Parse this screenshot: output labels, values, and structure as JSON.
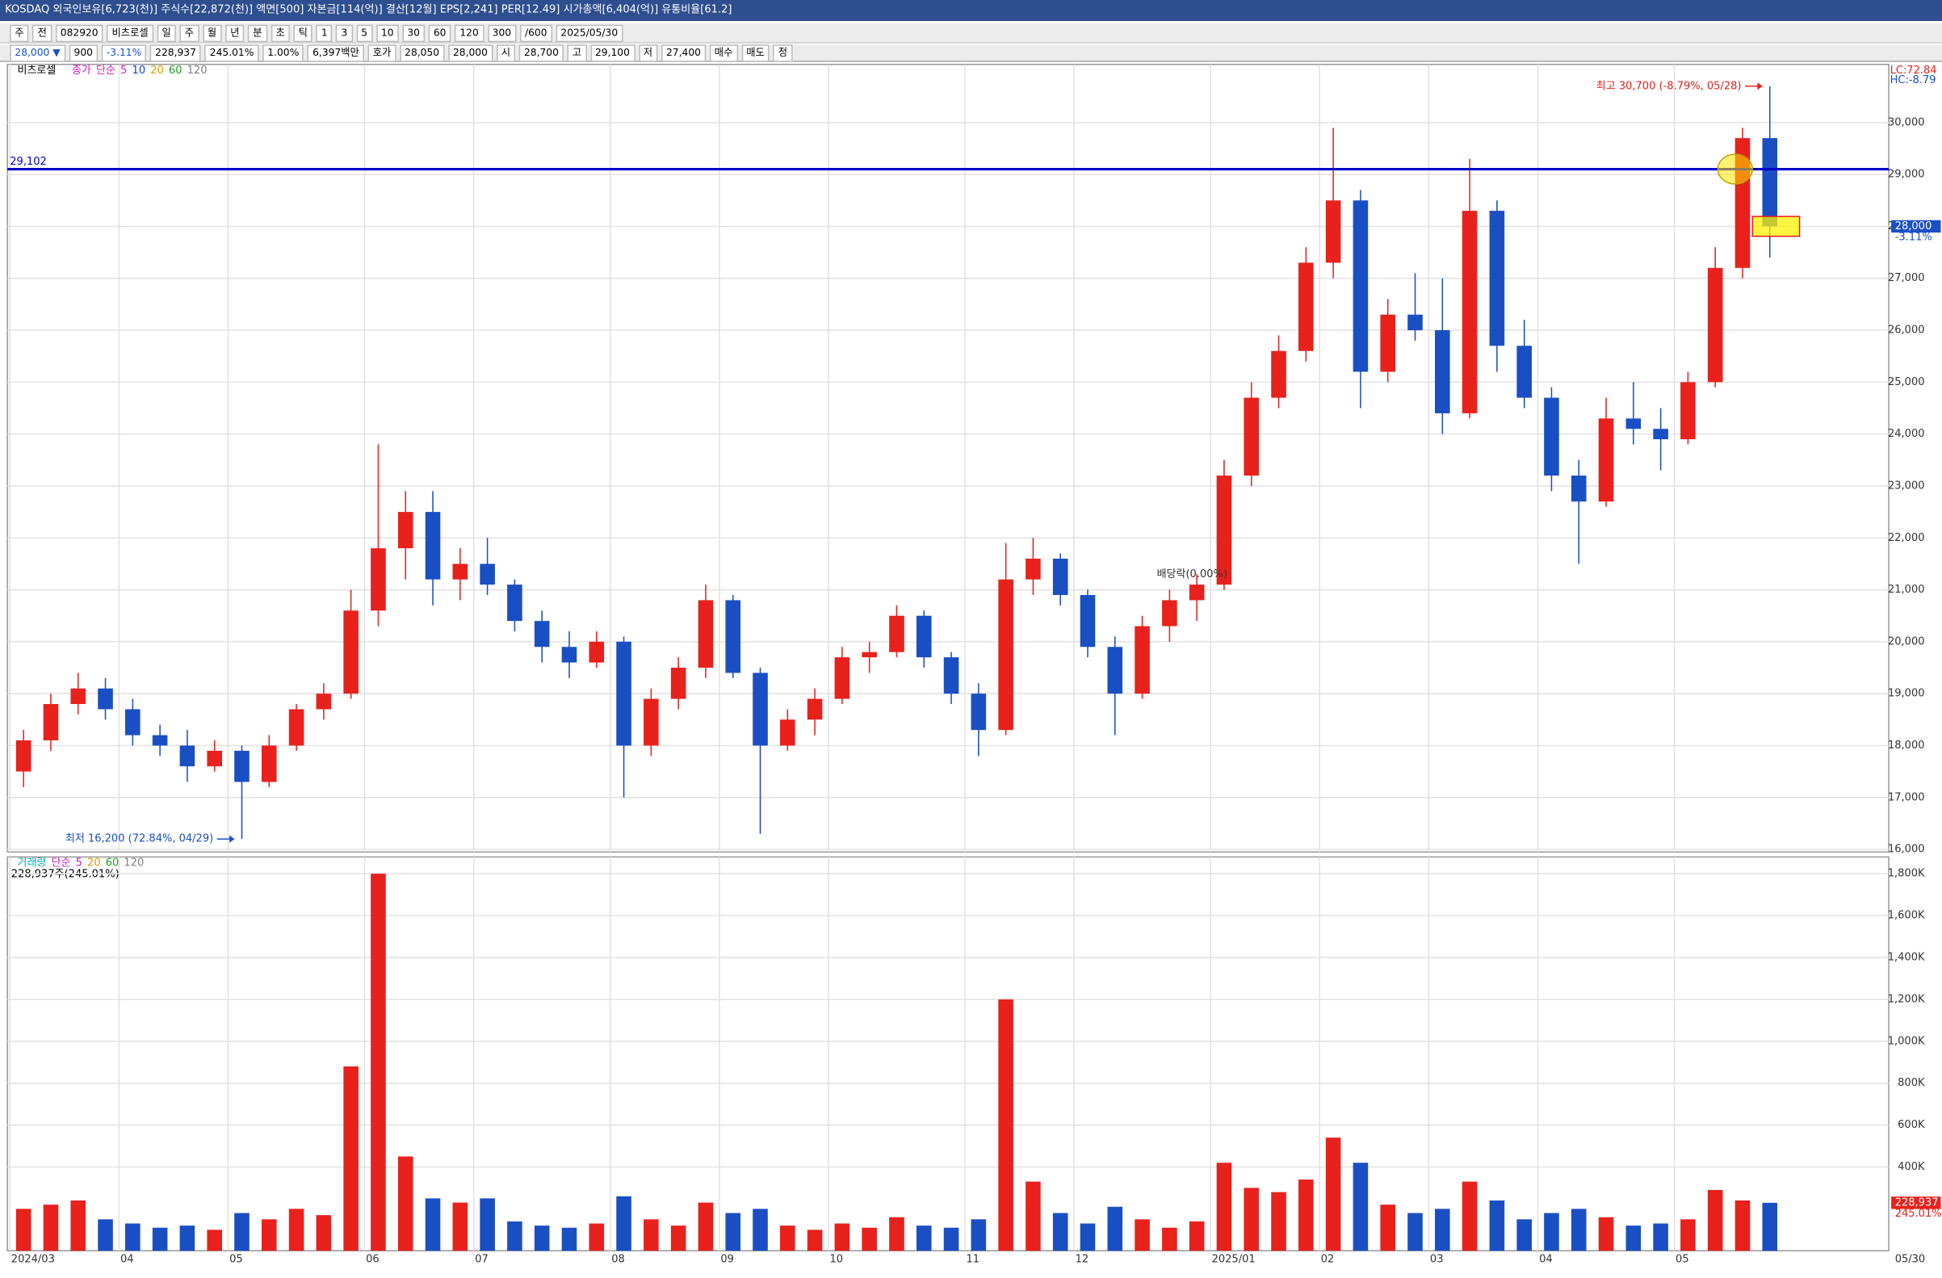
{
  "header": {
    "title": "KOSDAQ 외국인보유[6,723(천)] 주식수[22,872(천)] 액면[500] 자본금[114(억)] 결산[12월] EPS[2,241] PER[12.49] 시가총액[6,404(억)] 유통비율[61.2]",
    "toolbar": [
      "주",
      "전",
      "082920",
      "비츠로셀",
      "일",
      "주",
      "월",
      "년",
      "분",
      "초",
      "틱",
      "1",
      "3",
      "5",
      "10",
      "30",
      "60",
      "120",
      "300",
      "/600",
      "2025/05/30"
    ],
    "quote": [
      "28,000 ▼",
      "900",
      "-3.11%",
      "228,937",
      "245.01%",
      "1.00%",
      "6,397백만",
      "호가",
      "28,050",
      "28,000",
      "시",
      "28,700",
      "고",
      "29,100",
      "저",
      "27,400",
      "매수",
      "매도",
      "정"
    ]
  },
  "chart_data": [
    {
      "type": "candlestick",
      "title": "비츠로셀",
      "legend": [
        {
          "name": "종가",
          "color": "#d020c0"
        },
        {
          "name": "단순",
          "color": "#d020c0"
        },
        {
          "name": "5",
          "color": "#d020c0"
        },
        {
          "name": "10",
          "color": "#2040d0"
        },
        {
          "name": "20",
          "color": "#e0a000"
        },
        {
          "name": "60",
          "color": "#20a020"
        },
        {
          "name": "120",
          "color": "#808080"
        }
      ],
      "categories": [
        "2024/03",
        null,
        null,
        null,
        "04",
        null,
        null,
        null,
        "05",
        null,
        null,
        null,
        null,
        "06",
        null,
        null,
        null,
        "07",
        null,
        null,
        null,
        null,
        "08",
        null,
        null,
        null,
        "09",
        null,
        null,
        null,
        "10",
        null,
        null,
        null,
        null,
        "11",
        null,
        null,
        null,
        "12",
        null,
        null,
        null,
        null,
        "2025/01",
        null,
        null,
        null,
        "02",
        null,
        null,
        null,
        "03",
        null,
        null,
        null,
        "04",
        null,
        null,
        null,
        null,
        "05",
        null,
        null,
        null
      ],
      "open": [
        17500,
        18100,
        18800,
        19100,
        18700,
        18200,
        18000,
        17600,
        17900,
        17300,
        18000,
        18700,
        19000,
        20600,
        21800,
        22500,
        21200,
        21500,
        21100,
        20400,
        19900,
        19600,
        20000,
        18000,
        18900,
        19500,
        20800,
        19400,
        18000,
        18500,
        18900,
        19700,
        19800,
        20500,
        19700,
        19000,
        18300,
        21200,
        21600,
        20900,
        19900,
        19000,
        20300,
        20800,
        21100,
        23200,
        24700,
        25600,
        27300,
        28500,
        25200,
        26300,
        26000,
        24400,
        28300,
        25700,
        24700,
        23200,
        22700,
        24300,
        24100,
        23900,
        25000,
        27200,
        29700
      ],
      "high": [
        18300,
        19000,
        19400,
        19300,
        18900,
        18400,
        18300,
        18100,
        18000,
        18200,
        18800,
        19200,
        21000,
        23800,
        22900,
        22900,
        21800,
        22000,
        21200,
        20600,
        20200,
        20200,
        20100,
        19100,
        19700,
        21100,
        20900,
        19500,
        18700,
        19100,
        19900,
        20000,
        20700,
        20600,
        19800,
        19200,
        21900,
        22000,
        21700,
        21000,
        20100,
        20500,
        21000,
        21300,
        23500,
        25000,
        25900,
        27600,
        29900,
        28700,
        26600,
        27100,
        27000,
        29300,
        28500,
        26200,
        24900,
        23500,
        24700,
        25000,
        24500,
        25200,
        27600,
        29900,
        30700
      ],
      "low": [
        17200,
        17900,
        18600,
        18500,
        18000,
        17800,
        17300,
        17500,
        16200,
        17200,
        17900,
        18500,
        18900,
        20300,
        21200,
        20700,
        20800,
        20900,
        20200,
        19600,
        19300,
        19500,
        17000,
        17800,
        18700,
        19300,
        19300,
        16300,
        17900,
        18200,
        18800,
        19400,
        19700,
        19500,
        18800,
        17800,
        18200,
        20900,
        20700,
        19700,
        18200,
        18900,
        20000,
        20400,
        21000,
        23000,
        24500,
        25400,
        27000,
        24500,
        25000,
        25800,
        24000,
        24300,
        25200,
        24500,
        22900,
        21500,
        22600,
        23800,
        23300,
        23800,
        24900,
        27000,
        27400
      ],
      "close": [
        18100,
        18800,
        19100,
        18700,
        18200,
        18000,
        17600,
        17900,
        17300,
        18000,
        18700,
        19000,
        20600,
        21800,
        22500,
        21200,
        21500,
        21100,
        20400,
        19900,
        19600,
        20000,
        18000,
        18900,
        19500,
        20800,
        19400,
        18000,
        18500,
        18900,
        19700,
        19800,
        20500,
        19700,
        19000,
        18300,
        21200,
        21600,
        20900,
        19900,
        19000,
        20300,
        20800,
        21100,
        23200,
        24700,
        25600,
        27300,
        28500,
        25200,
        26300,
        26000,
        24400,
        28300,
        25700,
        24700,
        23200,
        22700,
        24300,
        24100,
        23900,
        25000,
        27200,
        29700,
        28000
      ],
      "up_color": "#e8211c",
      "down_color": "#1a4fc4",
      "ylim": [
        15950,
        31120
      ],
      "yticks": [
        {
          "value": 16000,
          "label": "16,000"
        },
        {
          "value": 17000,
          "label": "17,000"
        },
        {
          "value": 18000,
          "label": "18,000"
        },
        {
          "value": 19000,
          "label": "19,000"
        },
        {
          "value": 20000,
          "label": "20,000"
        },
        {
          "value": 21000,
          "label": "21,000"
        },
        {
          "value": 22000,
          "label": "22,000"
        },
        {
          "value": 23000,
          "label": "23,000"
        },
        {
          "value": 24000,
          "label": "24,000"
        },
        {
          "value": 25000,
          "label": "25,000"
        },
        {
          "value": 26000,
          "label": "26,000"
        },
        {
          "value": 27000,
          "label": "27,000"
        },
        {
          "value": 28000,
          "label": "28,000"
        },
        {
          "value": 29000,
          "label": "29,000"
        },
        {
          "value": 30000,
          "label": "30,000"
        }
      ],
      "grid": true,
      "annotations": [
        {
          "text": "최고 30,700 (-8.79%, 05/28)",
          "value": 30700,
          "color": "#e8211c"
        },
        {
          "text": "최저 16,200 (72.84%, 04/29)",
          "value": 16200,
          "color": "#1a4fc4"
        },
        {
          "text": "배당락(0.00%)",
          "color": "#333333"
        }
      ],
      "hline": {
        "value": 29102,
        "label": "29,102",
        "color": "#0000c8"
      },
      "last": {
        "value": 28000,
        "label": "28,000",
        "change": "-3.11%"
      },
      "corner": [
        {
          "text": "LC:72.84",
          "color": "#e8211c"
        },
        {
          "text": "HC:-8.79",
          "color": "#1a4fc4"
        }
      ],
      "x_end": "05/30"
    },
    {
      "type": "bar",
      "legend": [
        {
          "name": "거래량",
          "color": "#00b0c0"
        },
        {
          "name": "단순",
          "color": "#d020c0"
        },
        {
          "name": "5",
          "color": "#d020c0"
        },
        {
          "name": "20",
          "color": "#e0a000"
        },
        {
          "name": "60",
          "color": "#20a020"
        },
        {
          "name": "120",
          "color": "#808080"
        }
      ],
      "subtitle": "228,937주(245.01%)",
      "values": [
        200000,
        220000,
        240000,
        150000,
        130000,
        110000,
        120000,
        100000,
        180000,
        150000,
        200000,
        170000,
        880000,
        1800000,
        450000,
        250000,
        230000,
        250000,
        140000,
        120000,
        110000,
        130000,
        260000,
        150000,
        120000,
        230000,
        180000,
        200000,
        120000,
        100000,
        130000,
        110000,
        160000,
        120000,
        110000,
        150000,
        1200000,
        330000,
        180000,
        130000,
        210000,
        150000,
        110000,
        140000,
        420000,
        300000,
        280000,
        340000,
        540000,
        420000,
        220000,
        180000,
        200000,
        330000,
        240000,
        150000,
        180000,
        200000,
        160000,
        120000,
        130000,
        150000,
        290000,
        240000,
        228937
      ],
      "ylim": [
        0,
        1880000
      ],
      "yticks": [
        {
          "value": 400000,
          "label": "400K"
        },
        {
          "value": 600000,
          "label": "600K"
        },
        {
          "value": 800000,
          "label": "800K"
        },
        {
          "value": 1000000,
          "label": "1,000K"
        },
        {
          "value": 1200000,
          "label": "1,200K"
        },
        {
          "value": 1400000,
          "label": "1,400K"
        },
        {
          "value": 1600000,
          "label": "1,600K"
        },
        {
          "value": 1800000,
          "label": "1,800K"
        }
      ],
      "grid": true,
      "last": {
        "value": 228937,
        "label": "228,937",
        "change": "245.01%"
      }
    }
  ]
}
